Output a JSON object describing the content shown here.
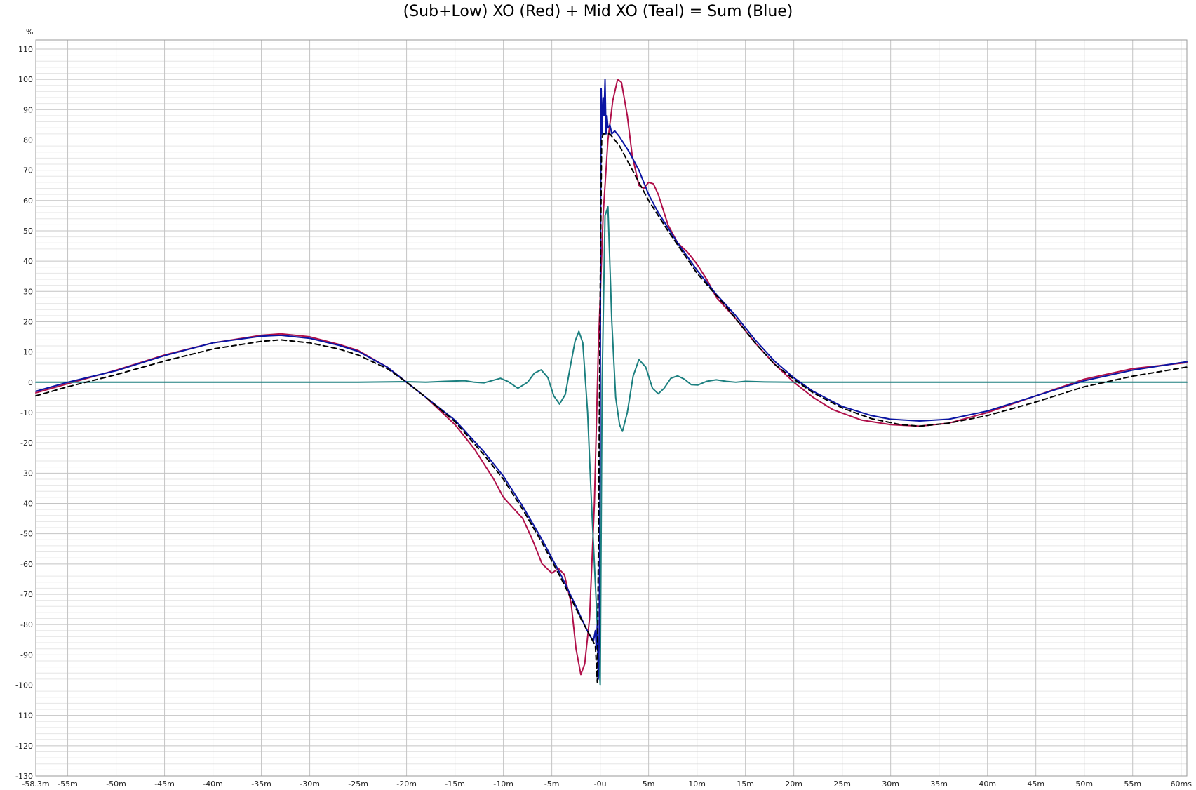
{
  "chart_data": {
    "type": "line",
    "title": "(Sub+Low) XO (Red) + Mid XO (Teal) = Sum (Blue)",
    "ylabel": "%",
    "xlabel": "",
    "xlim_ms": [
      -58.3,
      60.6
    ],
    "ylim": [
      -130,
      113
    ],
    "x_ticks": [
      {
        "value": -58.3,
        "label": "-58.3m"
      },
      {
        "value": -55,
        "label": "-55m"
      },
      {
        "value": -50,
        "label": "-50m"
      },
      {
        "value": -45,
        "label": "-45m"
      },
      {
        "value": -40,
        "label": "-40m"
      },
      {
        "value": -35,
        "label": "-35m"
      },
      {
        "value": -30,
        "label": "-30m"
      },
      {
        "value": -25,
        "label": "-25m"
      },
      {
        "value": -20,
        "label": "-20m"
      },
      {
        "value": -15,
        "label": "-15m"
      },
      {
        "value": -10,
        "label": "-10m"
      },
      {
        "value": -5,
        "label": "-5m"
      },
      {
        "value": 0,
        "label": "-0u"
      },
      {
        "value": 5,
        "label": "5m"
      },
      {
        "value": 10,
        "label": "10m"
      },
      {
        "value": 15,
        "label": "15m"
      },
      {
        "value": 20,
        "label": "20m"
      },
      {
        "value": 25,
        "label": "25m"
      },
      {
        "value": 30,
        "label": "30m"
      },
      {
        "value": 35,
        "label": "35m"
      },
      {
        "value": 40,
        "label": "40m"
      },
      {
        "value": 45,
        "label": "45m"
      },
      {
        "value": 50,
        "label": "50m"
      },
      {
        "value": 55,
        "label": "55m"
      },
      {
        "value": 60,
        "label": "60ms"
      }
    ],
    "y_ticks": [
      110,
      100,
      90,
      80,
      70,
      60,
      50,
      40,
      30,
      20,
      10,
      0,
      -10,
      -20,
      -30,
      -40,
      -50,
      -60,
      -70,
      -80,
      -90,
      -100,
      -110,
      -120,
      -130
    ],
    "grid": true,
    "series": [
      {
        "name": "Red",
        "color": "#b0104a",
        "dash": false,
        "points": [
          [
            -58.3,
            -3.5
          ],
          [
            -55,
            -0.5
          ],
          [
            -50,
            4
          ],
          [
            -45,
            9
          ],
          [
            -40,
            13
          ],
          [
            -35,
            15.5
          ],
          [
            -33,
            16
          ],
          [
            -30,
            15
          ],
          [
            -27,
            12.5
          ],
          [
            -25,
            10.5
          ],
          [
            -22,
            5
          ],
          [
            -20,
            0
          ],
          [
            -18,
            -5
          ],
          [
            -15,
            -14
          ],
          [
            -13,
            -22
          ],
          [
            -11,
            -32
          ],
          [
            -10,
            -38
          ],
          [
            -8,
            -45
          ],
          [
            -7,
            -52
          ],
          [
            -6,
            -60
          ],
          [
            -5,
            -63
          ],
          [
            -4.3,
            -61.5
          ],
          [
            -3.7,
            -63.5
          ],
          [
            -3,
            -73
          ],
          [
            -2.5,
            -88
          ],
          [
            -2,
            -96.5
          ],
          [
            -1.6,
            -93
          ],
          [
            -1.1,
            -78
          ],
          [
            -0.6,
            -40
          ],
          [
            -0.2,
            10
          ],
          [
            0.3,
            55
          ],
          [
            0.8,
            80
          ],
          [
            1.3,
            93
          ],
          [
            1.8,
            100
          ],
          [
            2.2,
            99
          ],
          [
            2.8,
            88
          ],
          [
            3.3,
            75
          ],
          [
            4,
            65
          ],
          [
            4.5,
            64
          ],
          [
            5,
            66
          ],
          [
            5.5,
            65.5
          ],
          [
            6,
            62
          ],
          [
            7,
            52
          ],
          [
            8,
            46
          ],
          [
            9,
            43
          ],
          [
            10,
            39
          ],
          [
            11,
            34
          ],
          [
            12,
            28
          ],
          [
            14,
            21
          ],
          [
            16,
            13
          ],
          [
            18,
            6
          ],
          [
            20,
            0
          ],
          [
            22,
            -5
          ],
          [
            24,
            -9
          ],
          [
            27,
            -12.5
          ],
          [
            30,
            -14
          ],
          [
            33,
            -14.5
          ],
          [
            36,
            -13.5
          ],
          [
            40,
            -10
          ],
          [
            45,
            -4.5
          ],
          [
            50,
            1
          ],
          [
            55,
            4.5
          ],
          [
            60.6,
            6.5
          ]
        ]
      },
      {
        "name": "Teal",
        "color": "#1b7f7f",
        "dash": false,
        "points": [
          [
            -58.3,
            0
          ],
          [
            -25,
            0
          ],
          [
            -20,
            0.2
          ],
          [
            -18,
            0
          ],
          [
            -16,
            0.3
          ],
          [
            -14,
            0.5
          ],
          [
            -13,
            0
          ],
          [
            -12,
            -0.2
          ],
          [
            -10.3,
            1.3
          ],
          [
            -9.5,
            0.2
          ],
          [
            -8.5,
            -2
          ],
          [
            -7.5,
            0
          ],
          [
            -6.8,
            3
          ],
          [
            -6.1,
            4.1
          ],
          [
            -5.4,
            1.5
          ],
          [
            -4.8,
            -4.5
          ],
          [
            -4.2,
            -7.2
          ],
          [
            -3.6,
            -4
          ],
          [
            -3.1,
            5
          ],
          [
            -2.6,
            13.5
          ],
          [
            -2.2,
            16.8
          ],
          [
            -1.8,
            13
          ],
          [
            -1.3,
            -10
          ],
          [
            -0.9,
            -40
          ],
          [
            -0.6,
            -60
          ],
          [
            -0.3,
            -80
          ],
          [
            0,
            -100
          ],
          [
            0.2,
            0
          ],
          [
            0.5,
            55
          ],
          [
            0.8,
            58
          ],
          [
            1.2,
            20
          ],
          [
            1.6,
            -5
          ],
          [
            2,
            -14
          ],
          [
            2.3,
            -16.2
          ],
          [
            2.8,
            -10
          ],
          [
            3.4,
            2
          ],
          [
            4,
            7.5
          ],
          [
            4.7,
            5
          ],
          [
            5.4,
            -2
          ],
          [
            6,
            -3.8
          ],
          [
            6.6,
            -2
          ],
          [
            7.3,
            1.3
          ],
          [
            8,
            2.1
          ],
          [
            8.7,
            1
          ],
          [
            9.4,
            -0.8
          ],
          [
            10.1,
            -0.9
          ],
          [
            11,
            0.3
          ],
          [
            12,
            0.8
          ],
          [
            13,
            0.3
          ],
          [
            14,
            0
          ],
          [
            15,
            0.3
          ],
          [
            17,
            0.1
          ],
          [
            20,
            0
          ],
          [
            60.6,
            0
          ]
        ]
      },
      {
        "name": "Blue",
        "color": "#0b15a3",
        "dash": false,
        "points": [
          [
            -58.3,
            -3
          ],
          [
            -55,
            0
          ],
          [
            -50,
            3.8
          ],
          [
            -45,
            8.8
          ],
          [
            -40,
            13
          ],
          [
            -35,
            15.2
          ],
          [
            -33,
            15.5
          ],
          [
            -30,
            14.5
          ],
          [
            -27,
            12.2
          ],
          [
            -25,
            10.2
          ],
          [
            -22,
            5
          ],
          [
            -20,
            0
          ],
          [
            -18,
            -5
          ],
          [
            -15,
            -12.5
          ],
          [
            -12,
            -23
          ],
          [
            -10,
            -31
          ],
          [
            -8,
            -41
          ],
          [
            -6,
            -52
          ],
          [
            -4,
            -64
          ],
          [
            -2.5,
            -74
          ],
          [
            -1.5,
            -81
          ],
          [
            -1,
            -84
          ],
          [
            -0.7,
            -85.5
          ],
          [
            -0.5,
            -82
          ],
          [
            -0.4,
            -88
          ],
          [
            -0.3,
            -80
          ],
          [
            -0.2,
            -98
          ],
          [
            -0.1,
            -85
          ],
          [
            0,
            -20
          ],
          [
            0.05,
            60
          ],
          [
            0.1,
            97
          ],
          [
            0.2,
            82
          ],
          [
            0.3,
            94
          ],
          [
            0.4,
            88
          ],
          [
            0.5,
            100
          ],
          [
            0.6,
            82
          ],
          [
            0.7,
            88
          ],
          [
            0.8,
            84
          ],
          [
            1,
            85
          ],
          [
            1.2,
            82
          ],
          [
            1.5,
            83
          ],
          [
            2,
            81
          ],
          [
            3,
            76
          ],
          [
            4,
            70
          ],
          [
            5,
            62
          ],
          [
            6,
            56
          ],
          [
            8,
            46
          ],
          [
            10,
            37
          ],
          [
            12,
            29
          ],
          [
            14,
            22
          ],
          [
            16,
            14
          ],
          [
            18,
            7
          ],
          [
            20,
            1.5
          ],
          [
            22,
            -3
          ],
          [
            25,
            -8
          ],
          [
            28,
            -11
          ],
          [
            30,
            -12.2
          ],
          [
            33,
            -12.8
          ],
          [
            36,
            -12.2
          ],
          [
            40,
            -9.5
          ],
          [
            45,
            -4.5
          ],
          [
            50,
            0.5
          ],
          [
            55,
            4
          ],
          [
            60.6,
            6.8
          ]
        ]
      },
      {
        "name": "",
        "color": "#000000",
        "dash": true,
        "points": [
          [
            -58.3,
            -4.5
          ],
          [
            -55,
            -1.5
          ],
          [
            -50,
            2.5
          ],
          [
            -45,
            7
          ],
          [
            -40,
            11
          ],
          [
            -35,
            13.5
          ],
          [
            -33,
            14
          ],
          [
            -30,
            13
          ],
          [
            -27,
            11
          ],
          [
            -25,
            9
          ],
          [
            -22,
            4.5
          ],
          [
            -20,
            0
          ],
          [
            -18,
            -5
          ],
          [
            -15,
            -13
          ],
          [
            -12,
            -24
          ],
          [
            -10,
            -32
          ],
          [
            -8,
            -42
          ],
          [
            -6,
            -53
          ],
          [
            -4,
            -65
          ],
          [
            -2,
            -78
          ],
          [
            -1,
            -84
          ],
          [
            -0.5,
            -87
          ],
          [
            -0.3,
            -99
          ],
          [
            -0.15,
            -40
          ],
          [
            0,
            30
          ],
          [
            0.15,
            80
          ],
          [
            0.3,
            82
          ],
          [
            1,
            82
          ],
          [
            2,
            78
          ],
          [
            3,
            72
          ],
          [
            4,
            66
          ],
          [
            5,
            60
          ],
          [
            7,
            50
          ],
          [
            10,
            36
          ],
          [
            13,
            25
          ],
          [
            16,
            13
          ],
          [
            18,
            6
          ],
          [
            20,
            1
          ],
          [
            22,
            -3.5
          ],
          [
            25,
            -8.5
          ],
          [
            28,
            -12
          ],
          [
            31,
            -14
          ],
          [
            33,
            -14.5
          ],
          [
            36,
            -13.5
          ],
          [
            40,
            -11
          ],
          [
            45,
            -6.5
          ],
          [
            50,
            -1.5
          ],
          [
            55,
            2
          ],
          [
            60.6,
            5
          ]
        ]
      }
    ]
  }
}
